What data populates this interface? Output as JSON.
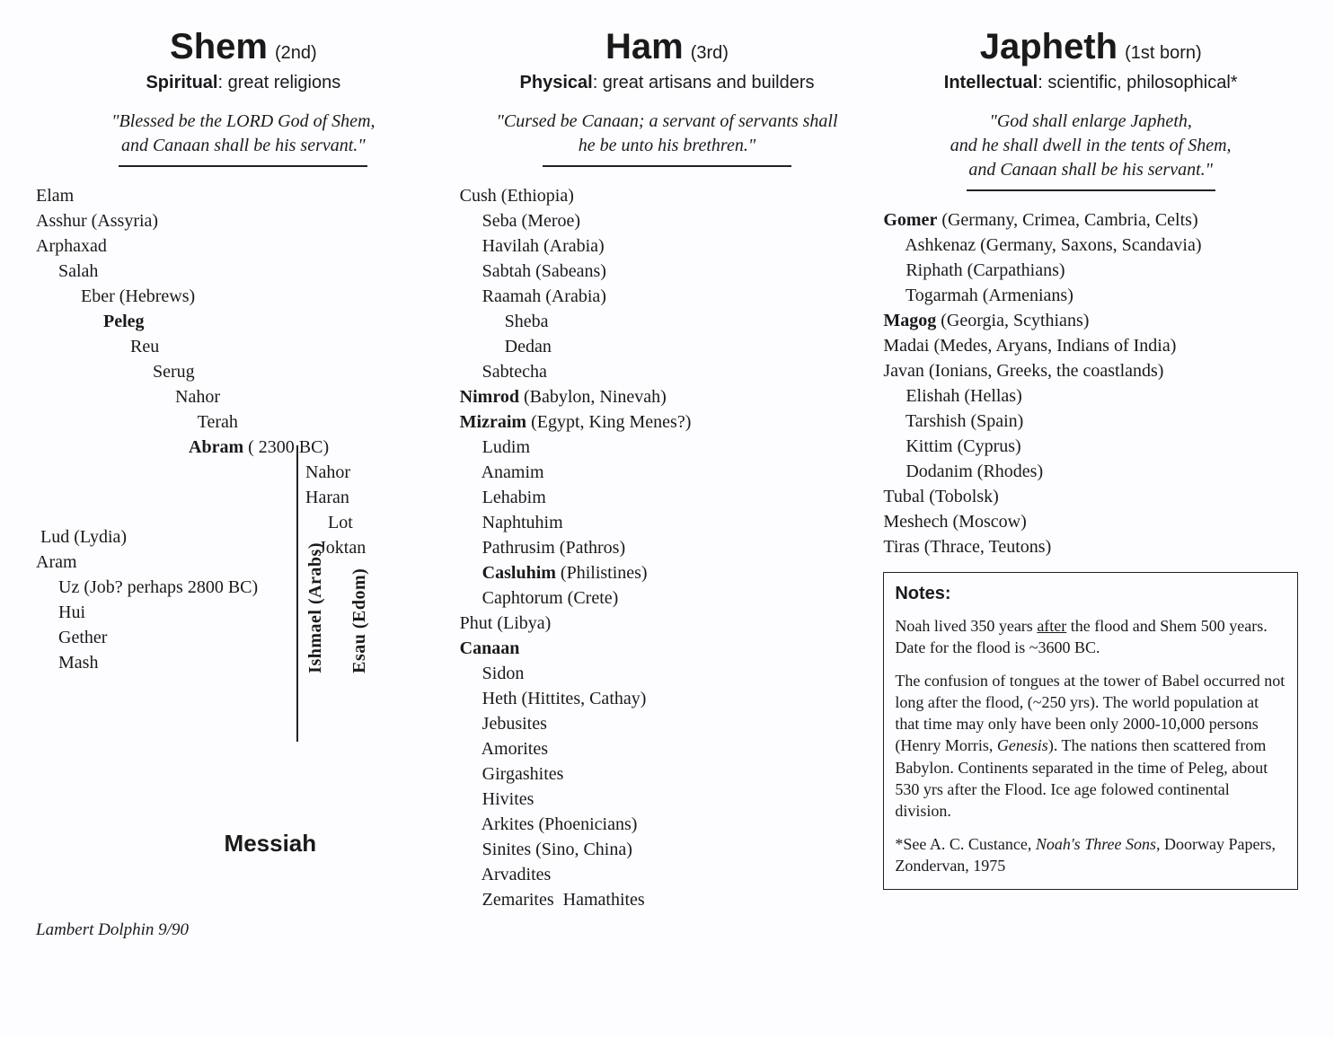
{
  "colors": {
    "text": "#1a1a1a",
    "background": "#fdfdff",
    "rule": "#222222",
    "border": "#222222"
  },
  "typography": {
    "title_fontsize_pt": 30,
    "order_fontsize_pt": 15,
    "trait_fontsize_pt": 15,
    "quote_fontsize_pt": 15,
    "body_fontsize_pt": 15,
    "notes_fontsize_pt": 13,
    "messiah_fontsize_pt": 19
  },
  "credit": "Lambert Dolphin 9/90",
  "shem": {
    "name": "Shem",
    "order": "(2nd)",
    "trait_label": "Spiritual",
    "trait_text": ": great religions",
    "quote_l1": "\"Blessed be the LORD God of Shem,",
    "quote_l2": "and Canaan shall be his servant.\"",
    "lines_top": [
      "Elam",
      "Asshur (Assyria)",
      "Arphaxad",
      "     Salah",
      "          Eber (Hebrews)",
      "               Peleg",
      "                     Reu",
      "                          Serug",
      "                               Nahor",
      "                                    Terah"
    ],
    "bold_top_indices": [
      5
    ],
    "abram_line": "                                  Abram ( 2300 BC)",
    "abram_sub": [
      "Nahor",
      "Haran",
      "     Lot",
      "   Joktan"
    ],
    "lines_lower": [
      " Lud (Lydia)",
      "Aram",
      "     Uz (Job? perhaps 2800 BC)",
      "     Hui",
      "     Gether",
      "     Mash"
    ],
    "vlabel1": "Ishmael (Arabs)",
    "vlabel2": "Esau (Edom)",
    "messiah": "Messiah"
  },
  "ham": {
    "name": "Ham",
    "order": "(3rd)",
    "trait_label": "Physical",
    "trait_text": ": great artisans and builders",
    "quote_l1": "\"Cursed be Canaan; a servant of servants shall",
    "quote_l2": "he be unto his brethren.\"",
    "lines": [
      "Cush (Ethiopia)",
      "     Seba (Meroe)",
      "     Havilah (Arabia)",
      "     Sabtah (Sabeans)",
      "     Raamah (Arabia)",
      "          Sheba",
      "          Dedan",
      "     Sabtecha",
      "Nimrod (Babylon, Ninevah)",
      "Mizraim (Egypt, King Menes?)",
      "     Ludim",
      "     Anamim",
      "     Lehabim",
      "     Naphtuhim",
      "     Pathrusim (Pathros)",
      "     Casluhim (Philistines)",
      "     Caphtorum (Crete)",
      "Phut (Libya)",
      "Canaan",
      "     Sidon",
      "     Heth (Hittites, Cathay)",
      "     Jebusites",
      "     Amorites",
      "     Girgashites",
      "     Hivites",
      "     Arkites (Phoenicians)",
      "     Sinites (Sino, China)",
      "     Arvadites",
      "     Zemarites  Hamathites"
    ],
    "bold_indices": [
      8,
      9,
      15,
      18
    ]
  },
  "japheth": {
    "name": "Japheth",
    "order": "(1st born)",
    "trait_label": "Intellectual",
    "trait_text": ": scientific, philosophical*",
    "quote_l1": "\"God shall enlarge Japheth,",
    "quote_l2": "and he shall dwell in the tents of Shem,",
    "quote_l3": "and Canaan shall be his servant.\"",
    "lines": [
      "Gomer (Germany, Crimea, Cambria, Celts)",
      "     Ashkenaz (Germany, Saxons, Scandavia)",
      "     Riphath (Carpathians)",
      "     Togarmah (Armenians)",
      "",
      "Magog (Georgia, Scythians)",
      "Madai (Medes, Aryans, Indians of India)",
      "Javan (Ionians, Greeks, the coastlands)",
      "     Elishah (Hellas)",
      "     Tarshish (Spain)",
      "     Kittim (Cyprus)",
      "     Dodanim (Rhodes)",
      "Tubal (Tobolsk)",
      "Meshech (Moscow)",
      "Tiras (Thrace, Teutons)"
    ],
    "bold_first_word_indices": [
      0,
      5
    ],
    "notes": {
      "title": "Notes:",
      "p1_a": "Noah lived 350 years ",
      "p1_u": "after",
      "p1_b": " the flood and Shem 500 years. Date for the flood is ~3600 BC.",
      "p2_a": "The confusion of tongues at the tower of Babel occurred not long after the flood, (~250 yrs). The world population at that time may only have been only 2000-10,000 persons (Henry Morris, ",
      "p2_it": "Genesis",
      "p2_b": "). The nations then scattered from Babylon. Continents separated in the time of Peleg, about 530 yrs after the Flood. Ice age folowed continental division.",
      "p3_a": "*See A. C. Custance, ",
      "p3_it": "Noah's Three Sons,",
      "p3_b": "  Doorway Papers, Zondervan, 1975"
    }
  }
}
